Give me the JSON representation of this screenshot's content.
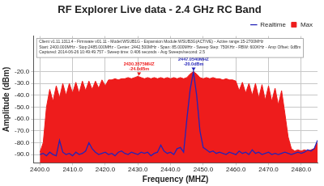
{
  "chart_data": {
    "type": "line",
    "title": "RF Explorer Live data - 2.4 GHz RC Band",
    "x_label": "Frequency (MHZ)",
    "y_label": "Amplitude (dBm)",
    "x": [
      2400,
      2401,
      2402,
      2403,
      2404,
      2405,
      2406,
      2407,
      2408,
      2409,
      2410,
      2411,
      2412,
      2413,
      2414,
      2415,
      2416,
      2417,
      2418,
      2419,
      2420,
      2421,
      2422,
      2423,
      2424,
      2425,
      2426,
      2427,
      2428,
      2429,
      2430,
      2431,
      2432,
      2433,
      2434,
      2435,
      2436,
      2437,
      2438,
      2439,
      2440,
      2441,
      2442,
      2443,
      2444,
      2445,
      2446,
      2447,
      2448,
      2449,
      2450,
      2451,
      2452,
      2453,
      2454,
      2455,
      2456,
      2457,
      2458,
      2459,
      2460,
      2461,
      2462,
      2463,
      2464,
      2465,
      2466,
      2467,
      2468,
      2469,
      2470,
      2471,
      2472,
      2473,
      2474,
      2475,
      2476,
      2477,
      2478,
      2479,
      2480,
      2481,
      2482,
      2483,
      2484,
      2485
    ],
    "series": [
      {
        "name": "Realtime",
        "type": "line",
        "color": "#2424b8",
        "marker": "none",
        "line_style": "solid",
        "values": [
          -90,
          -89,
          -91,
          -88,
          -90,
          -91,
          -78,
          -88,
          -90,
          -89,
          -91,
          -88,
          -90,
          -89,
          -87,
          -80,
          -85,
          -88,
          -90,
          -89,
          -88,
          -90,
          -89,
          -91,
          -88,
          -87,
          -89,
          -90,
          -88,
          -89,
          -90,
          -88,
          -89,
          -88,
          -91,
          -89,
          -88,
          -82,
          -87,
          -89,
          -88,
          -90,
          -85,
          -84,
          -88,
          -60,
          -35,
          -20,
          -40,
          -70,
          -84,
          -86,
          -88,
          -87,
          -89,
          -88,
          -89,
          -90,
          -88,
          -89,
          -90,
          -87,
          -89,
          -88,
          -90,
          -86,
          -89,
          -88,
          -90,
          -89,
          -88,
          -90,
          -89,
          -90,
          -89,
          -88,
          -89,
          -90,
          -89,
          -88,
          -89,
          -88,
          -86,
          -87,
          -85,
          -78
        ]
      },
      {
        "name": "Max",
        "type": "area",
        "color": "#ee1c1c",
        "marker": "none",
        "line_style": "solid",
        "values": [
          -88,
          -80,
          -50,
          -35,
          -45,
          -32,
          -42,
          -30,
          -40,
          -30,
          -38,
          -29,
          -38,
          -28,
          -36,
          -28,
          -35,
          -28,
          -34,
          -27,
          -32,
          -27,
          -27,
          -26,
          -27,
          -26,
          -26,
          -25,
          -26,
          -25,
          -24,
          -25,
          -26,
          -25,
          -26,
          -25,
          -26,
          -25,
          -26,
          -25,
          -26,
          -25,
          -26,
          -25,
          -26,
          -25,
          -22,
          -20,
          -22,
          -25,
          -26,
          -25,
          -26,
          -25,
          -26,
          -26,
          -27,
          -26,
          -27,
          -27,
          -28,
          -36,
          -29,
          -38,
          -30,
          -40,
          -30,
          -42,
          -31,
          -44,
          -32,
          -45,
          -34,
          -48,
          -36,
          -55,
          -75,
          -85,
          -87,
          -86,
          -87,
          -86,
          -87,
          -86,
          -85,
          -80
        ]
      }
    ],
    "xlim": [
      2398,
      2485
    ],
    "xticks": [
      {
        "value": 2400,
        "label": "2400.0"
      },
      {
        "value": 2410,
        "label": "2410.0"
      },
      {
        "value": 2420,
        "label": "2420.0"
      },
      {
        "value": 2430,
        "label": "2430.0"
      },
      {
        "value": 2440,
        "label": "2440.0"
      },
      {
        "value": 2450,
        "label": "2450.0"
      },
      {
        "value": 2460,
        "label": "2460.0"
      },
      {
        "value": 2470,
        "label": "2470.0"
      },
      {
        "value": 2480,
        "label": "2480.0"
      }
    ],
    "ylim": [
      -97,
      10
    ],
    "yticks": [
      {
        "value": -90,
        "label": "-90.0"
      },
      {
        "value": -80,
        "label": "-80.0"
      },
      {
        "value": -70,
        "label": "-70.0"
      },
      {
        "value": -60,
        "label": "-60.0"
      },
      {
        "value": -50,
        "label": "-50.0"
      },
      {
        "value": -40,
        "label": "-40.0"
      },
      {
        "value": -30,
        "label": "-30.0"
      },
      {
        "value": -20,
        "label": "-20.0"
      }
    ],
    "grid": true,
    "legend": "top right",
    "info": [
      "Client v1.11.1311.4 - Firmware v01.11 - Model:WSUB1G - Expansion Module:WSUB3G(ACTIVE) - Active range:15-2700MHz",
      "Start: 2400.000MHz - Stop:2485.000MHz - Center: 2442.500MHz - Span: 85.000MHz - Sweep Step: 750KHz - RBW: 600KHz - Amp Offset: 0dBm",
      "Captured: 2014-06-26 10:49:49.757 - Sweep time: 0.406 seconds - Avg Sweeps/second: 2.5"
    ],
    "annotations": [
      {
        "x": 2430.3575,
        "y": -24.0,
        "text": [
          "2430.3575MHZ",
          "-24.0dBm"
        ],
        "color": "#ee1c1c"
      },
      {
        "x": 2447.054,
        "y": -20.0,
        "text": [
          "2447.0540MHZ",
          "-20.0dBm"
        ],
        "color": "#2424b8"
      }
    ]
  }
}
